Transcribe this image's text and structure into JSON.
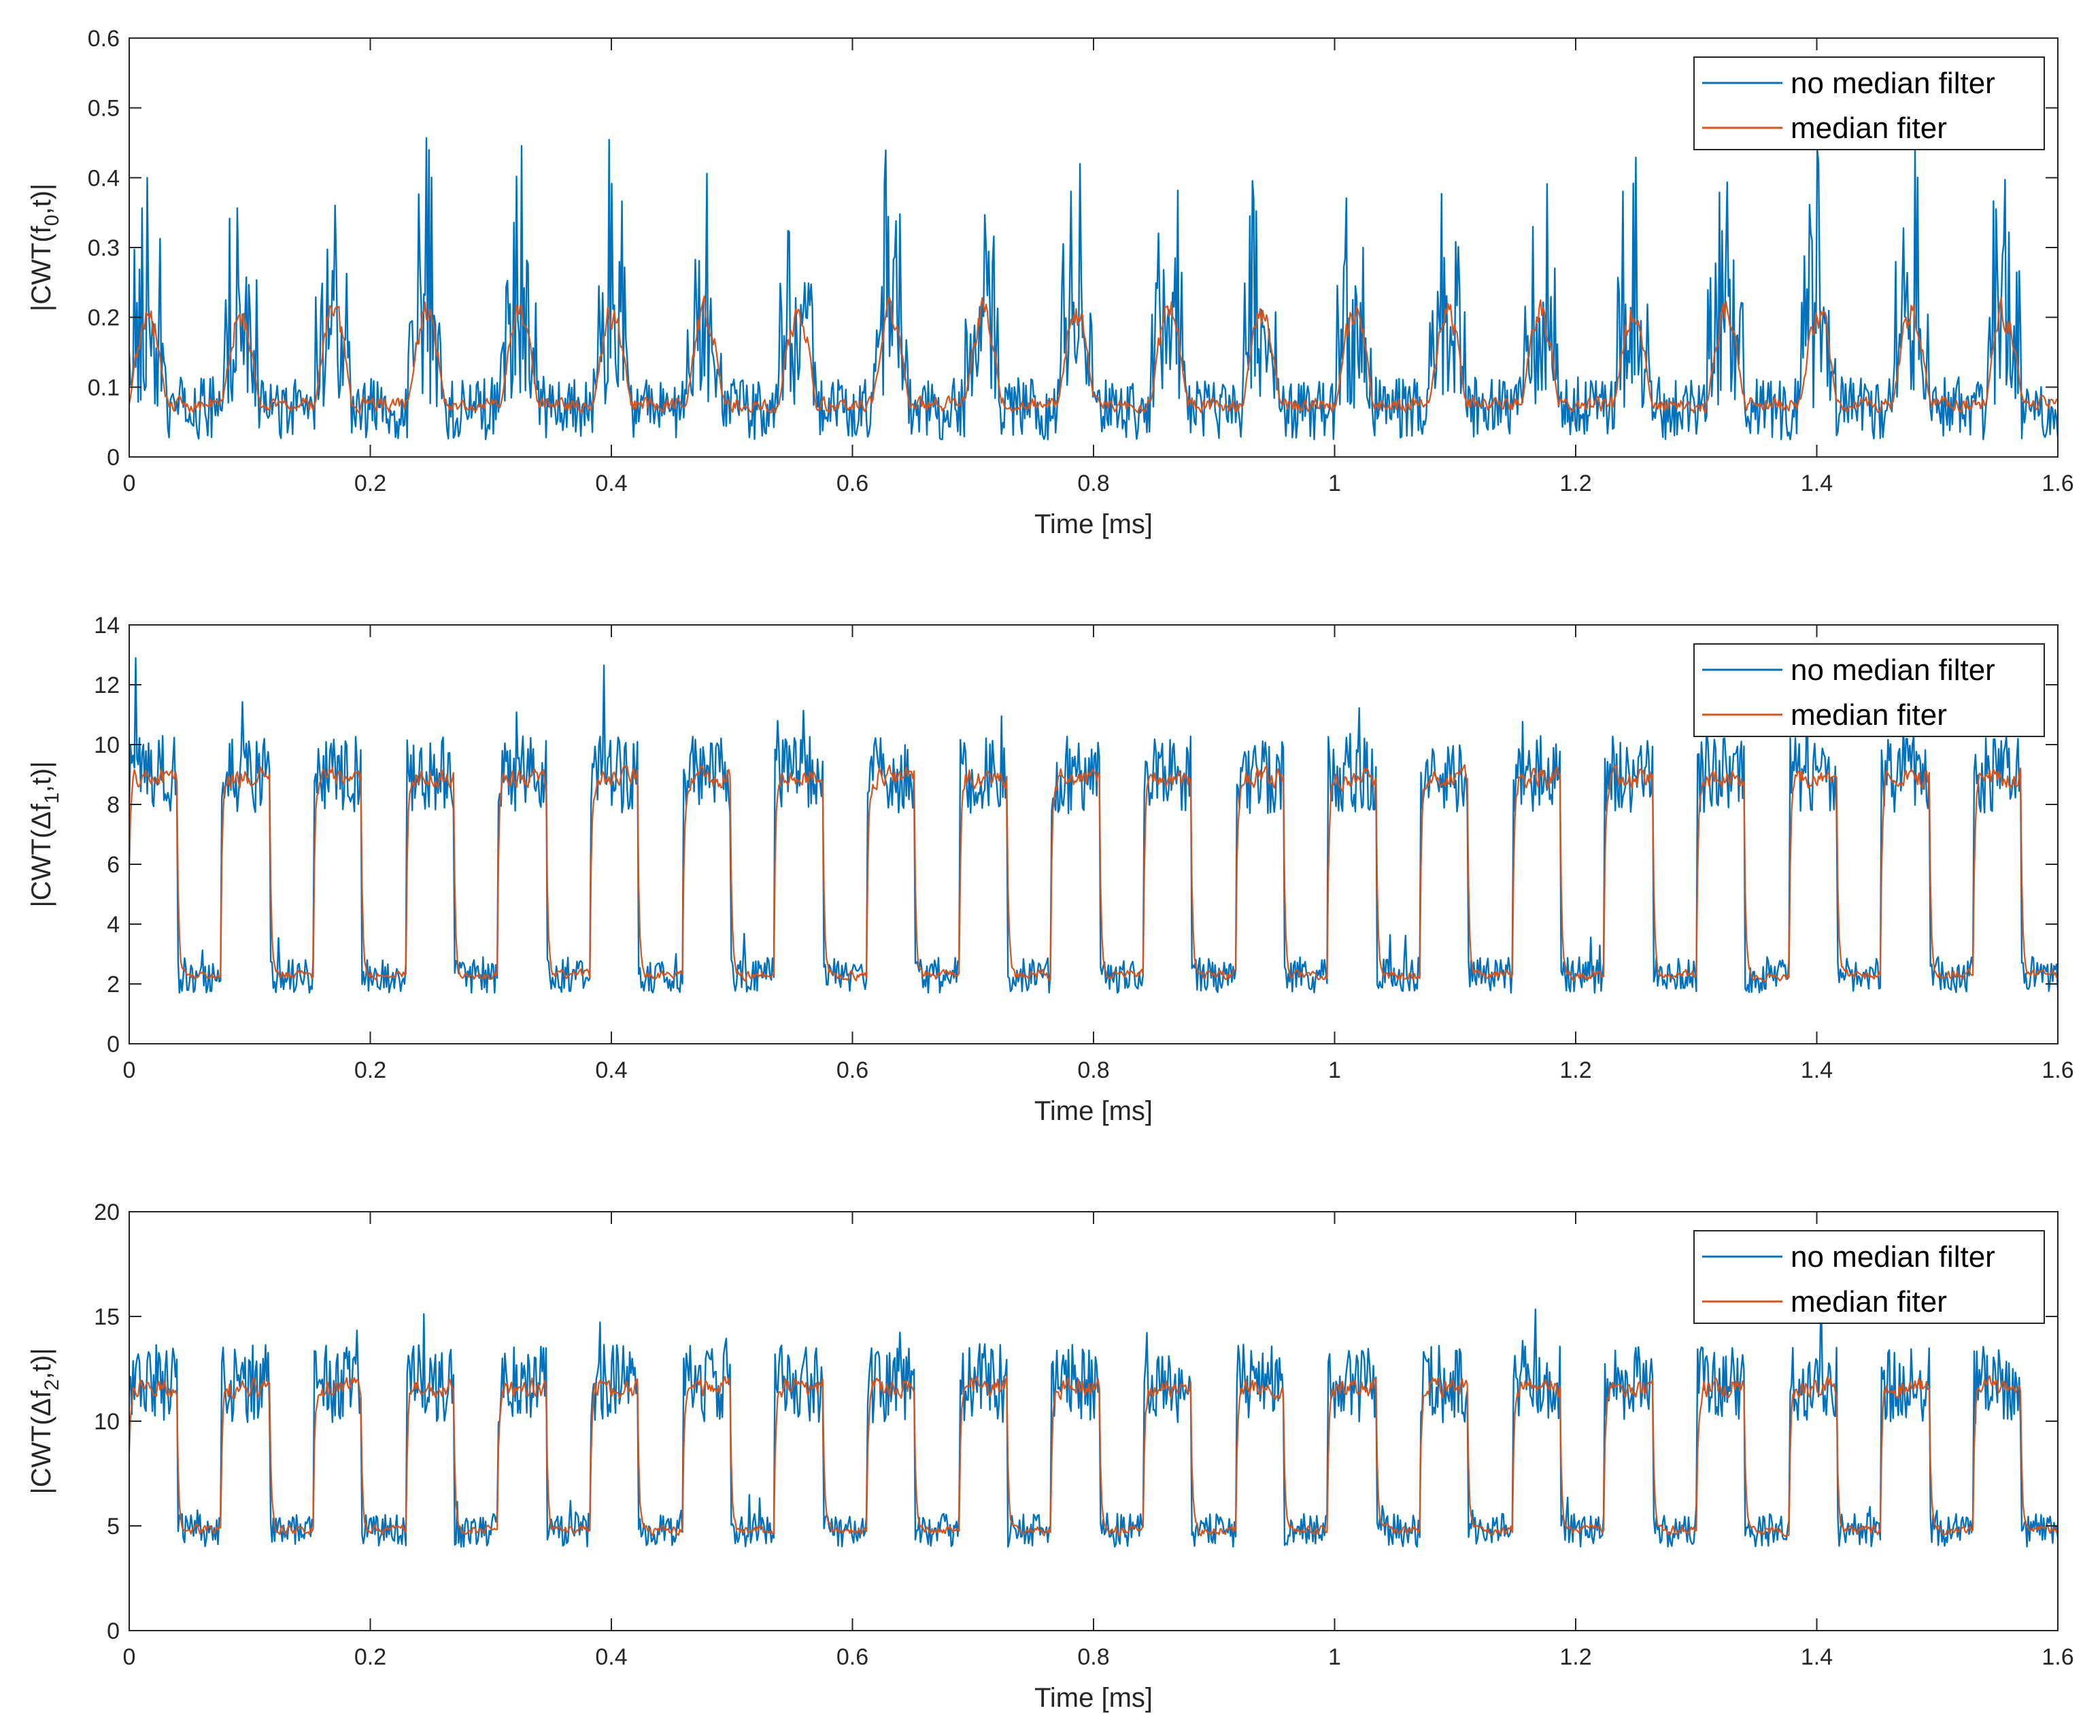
{
  "colors": {
    "no_filter": "#0072BD",
    "median": "#D95319",
    "axis": "#262626",
    "background": "#ffffff"
  },
  "chart_data": [
    {
      "type": "line",
      "xlabel": "Time [ms]",
      "ylabel": "|CWT(f0,t)|",
      "ylabel_parts": {
        "pre": "|CWT(f",
        "sub": "0",
        "post": ",t)|"
      },
      "xlim": [
        0,
        1.6
      ],
      "ylim": [
        0,
        0.6
      ],
      "xticks": [
        "0",
        "0.2",
        "0.4",
        "0.6",
        "0.8",
        "1",
        "1.2",
        "1.4",
        "1.6"
      ],
      "yticks": [
        "0",
        "0.1",
        "0.2",
        "0.3",
        "0.4",
        "0.5",
        "0.6"
      ],
      "ytick_values": [
        0,
        0.1,
        0.2,
        0.3,
        0.4,
        0.5,
        0.6
      ],
      "legend": [
        "no median filter",
        "median fiter"
      ],
      "legend_position": "top-right",
      "pattern": "bursts",
      "period_ms": 0.077,
      "burst_width_ms": 0.03,
      "burst_start_ms": 0.0,
      "series": [
        {
          "name": "no median filter",
          "baseline": 0.07,
          "noise": 0.045,
          "burst_peak": 0.46
        },
        {
          "name": "median fiter",
          "baseline": 0.075,
          "noise": 0.015,
          "burst_peak": 0.24
        }
      ]
    },
    {
      "type": "line",
      "xlabel": "Time [ms]",
      "ylabel": "|CWT(Δf1,t)|",
      "ylabel_parts": {
        "pre": "|CWT(Δf",
        "sub": "1",
        "post": ",t)|"
      },
      "xlim": [
        0,
        1.6
      ],
      "ylim": [
        0,
        14
      ],
      "xticks": [
        "0",
        "0.2",
        "0.4",
        "0.6",
        "0.8",
        "1",
        "1.2",
        "1.4",
        "1.6"
      ],
      "yticks": [
        "0",
        "2",
        "4",
        "6",
        "8",
        "10",
        "12",
        "14"
      ],
      "ytick_values": [
        0,
        2,
        4,
        6,
        8,
        10,
        12,
        14
      ],
      "legend": [
        "no median filter",
        "median fiter"
      ],
      "legend_position": "top-right",
      "pattern": "square",
      "period_ms": 0.0765,
      "high_duration_ms": 0.04,
      "first_high_start_ms": 0.0,
      "series": [
        {
          "name": "no median filter",
          "high": 9.0,
          "low": 2.3,
          "noise_high": 1.3,
          "noise_low": 0.6
        },
        {
          "name": "median fiter",
          "high": 8.9,
          "low": 2.3,
          "noise_high": 0.5,
          "noise_low": 0.25
        }
      ]
    },
    {
      "type": "line",
      "xlabel": "Time [ms]",
      "ylabel": "|CWT(Δf2,t)|",
      "ylabel_parts": {
        "pre": "|CWT(Δf",
        "sub": "2",
        "post": ",t)|"
      },
      "xlim": [
        0,
        1.6
      ],
      "ylim": [
        0,
        20
      ],
      "xticks": [
        "0",
        "0.2",
        "0.4",
        "0.6",
        "0.8",
        "1",
        "1.2",
        "1.4",
        "1.6"
      ],
      "yticks": [
        "0",
        "5",
        "10",
        "15",
        "20"
      ],
      "ytick_values": [
        0,
        5,
        10,
        15,
        20
      ],
      "legend": [
        "no median filter",
        "median fiter"
      ],
      "legend_position": "top-right",
      "pattern": "square",
      "period_ms": 0.0765,
      "high_duration_ms": 0.04,
      "first_high_start_ms": 0.0,
      "series": [
        {
          "name": "no median filter",
          "high": 11.8,
          "low": 4.8,
          "noise_high": 1.9,
          "noise_low": 0.8
        },
        {
          "name": "median fiter",
          "high": 11.6,
          "low": 4.8,
          "noise_high": 0.7,
          "noise_low": 0.35
        }
      ]
    }
  ]
}
